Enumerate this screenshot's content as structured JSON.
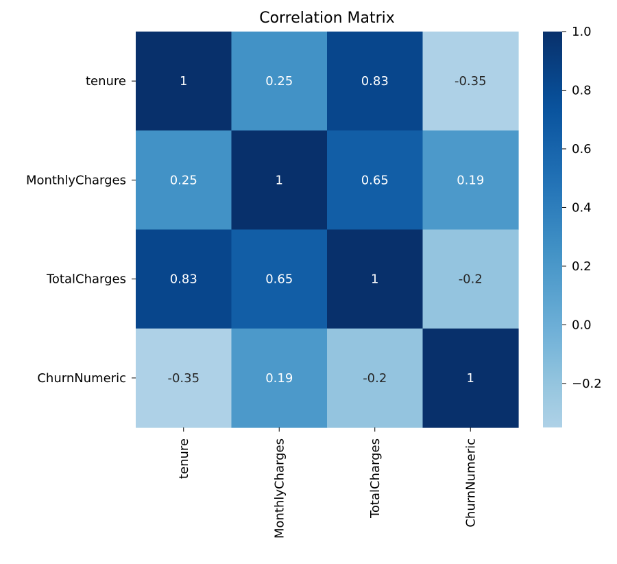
{
  "chart_data": {
    "type": "heatmap",
    "title": "Correlation Matrix",
    "xlabel": "",
    "ylabel": "",
    "row_labels": [
      "tenure",
      "MonthlyCharges",
      "TotalCharges",
      "ChurnNumeric"
    ],
    "col_labels": [
      "tenure",
      "MonthlyCharges",
      "TotalCharges",
      "ChurnNumeric"
    ],
    "values": [
      [
        1,
        0.25,
        0.83,
        -0.35
      ],
      [
        0.25,
        1,
        0.65,
        0.19
      ],
      [
        0.83,
        0.65,
        1,
        -0.2
      ],
      [
        -0.35,
        0.19,
        -0.2,
        1
      ]
    ],
    "cell_labels": [
      [
        "1",
        "0.25",
        "0.83",
        "-0.35"
      ],
      [
        "0.25",
        "1",
        "0.65",
        "0.19"
      ],
      [
        "0.83",
        "0.65",
        "1",
        "-0.2"
      ],
      [
        "-0.35",
        "0.19",
        "-0.2",
        "1"
      ]
    ],
    "colormap": "Blues",
    "vmin": -0.35,
    "vmax": 1.0,
    "colorbar": {
      "ticks": [
        1.0,
        0.8,
        0.6,
        0.4,
        0.2,
        0.0,
        -0.2
      ],
      "tick_labels": [
        "1.0",
        "0.8",
        "0.6",
        "0.4",
        "0.2",
        "0.0",
        "−0.2"
      ]
    },
    "grid": false,
    "legend": "colorbar-right"
  }
}
